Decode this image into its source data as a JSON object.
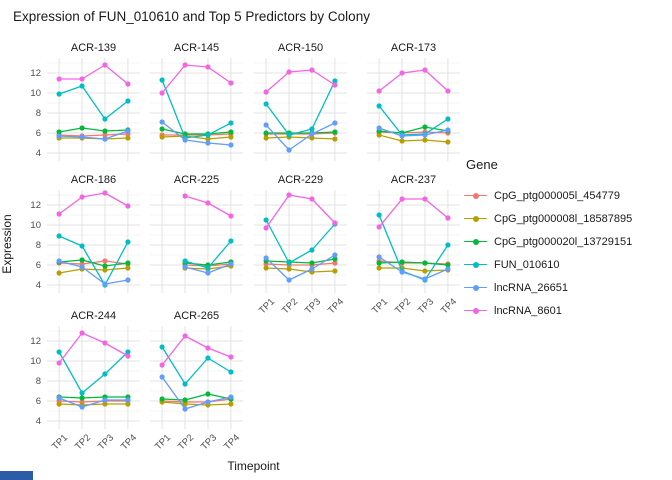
{
  "title": "Expression of FUN_010610 and Top 5 Predictors by Colony",
  "axes": {
    "x_label": "Timepoint",
    "y_label": "Expression",
    "x_tick_labels": [
      "TP1",
      "TP2",
      "TP3",
      "TP4"
    ],
    "y_tick_labels": [
      "12",
      "10",
      "8",
      "6",
      "4"
    ]
  },
  "legend": {
    "title": "Gene"
  },
  "chart_data": {
    "type": "line",
    "faceted": true,
    "title": "Expression of FUN_010610 and Top 5 Predictors by Colony",
    "xlabel": "Timepoint",
    "ylabel": "Expression",
    "x": [
      "TP1",
      "TP2",
      "TP3",
      "TP4"
    ],
    "ylim": [
      3.2,
      13.5
    ],
    "yticks": [
      4,
      6,
      8,
      10,
      12
    ],
    "yticks_minor": [
      5,
      7,
      9,
      11,
      13
    ],
    "grid": true,
    "legend_title": "Gene",
    "legend_position": "right",
    "genes": [
      {
        "name": "CpG_ptg000005l_454779",
        "color": "#F8766D"
      },
      {
        "name": "CpG_ptg000008l_18587895",
        "color": "#B79F00"
      },
      {
        "name": "CpG_ptg000020l_13729151",
        "color": "#00BA38"
      },
      {
        "name": "FUN_010610",
        "color": "#00BFC4"
      },
      {
        "name": "lncRNA_26651",
        "color": "#619CFF"
      },
      {
        "name": "lncRNA_8601",
        "color": "#F564E3"
      }
    ],
    "facets": [
      {
        "colony": "ACR-139",
        "values": [
          [
            5.8,
            5.7,
            5.8,
            5.9
          ],
          [
            5.5,
            5.5,
            5.4,
            5.5
          ],
          [
            6.1,
            6.5,
            6.2,
            6.3
          ],
          [
            9.9,
            10.7,
            7.4,
            9.2
          ],
          [
            5.7,
            5.6,
            5.4,
            6.2
          ],
          [
            11.4,
            11.4,
            12.8,
            10.9
          ]
        ]
      },
      {
        "colony": "ACR-145",
        "values": [
          [
            5.8,
            5.8,
            5.8,
            5.9
          ],
          [
            5.6,
            5.7,
            5.4,
            5.6
          ],
          [
            6.4,
            5.9,
            5.9,
            6.1
          ],
          [
            11.3,
            5.5,
            5.8,
            7.0
          ],
          [
            7.1,
            5.3,
            5.0,
            4.8
          ],
          [
            10.0,
            12.8,
            12.6,
            11.0
          ]
        ]
      },
      {
        "colony": "ACR-150",
        "values": [
          [
            5.9,
            5.9,
            5.9,
            6.0
          ],
          [
            5.5,
            5.6,
            5.5,
            5.4
          ],
          [
            6.0,
            6.0,
            6.0,
            6.1
          ],
          [
            8.9,
            5.8,
            6.4,
            11.2
          ],
          [
            6.8,
            4.3,
            5.9,
            7.0
          ],
          [
            10.1,
            12.1,
            12.3,
            10.8
          ]
        ]
      },
      {
        "colony": "ACR-173",
        "values": [
          [
            6.1,
            6.0,
            6.1,
            6.0
          ],
          [
            5.8,
            5.2,
            5.3,
            5.1
          ],
          [
            6.2,
            6.0,
            6.6,
            6.2
          ],
          [
            8.7,
            5.8,
            5.9,
            7.4
          ],
          [
            6.5,
            5.7,
            5.8,
            6.3
          ],
          [
            10.2,
            12.0,
            12.3,
            10.2
          ]
        ]
      },
      {
        "colony": "ACR-186",
        "values": [
          [
            6.2,
            6.1,
            6.4,
            6.1
          ],
          [
            5.2,
            5.6,
            5.5,
            5.7
          ],
          [
            6.3,
            6.5,
            5.9,
            6.2
          ],
          [
            8.9,
            7.9,
            4.0,
            8.3
          ],
          [
            6.4,
            5.8,
            4.1,
            4.5
          ],
          [
            11.1,
            12.8,
            13.2,
            11.9
          ]
        ]
      },
      {
        "colony": "ACR-225",
        "values": [
          [
            null,
            6.0,
            5.9,
            6.1
          ],
          [
            null,
            5.7,
            5.6,
            5.9
          ],
          [
            null,
            6.2,
            6.0,
            6.3
          ],
          [
            null,
            6.4,
            5.7,
            8.4
          ],
          [
            null,
            5.8,
            5.2,
            6.1
          ],
          [
            null,
            12.9,
            12.2,
            10.9
          ]
        ]
      },
      {
        "colony": "ACR-229",
        "values": [
          [
            6.1,
            6.0,
            6.0,
            6.2
          ],
          [
            5.7,
            5.6,
            5.3,
            5.4
          ],
          [
            6.4,
            6.3,
            6.2,
            6.6
          ],
          [
            10.5,
            6.2,
            7.5,
            10.1
          ],
          [
            6.7,
            4.5,
            5.6,
            7.0
          ],
          [
            9.7,
            13.0,
            12.6,
            10.2
          ]
        ]
      },
      {
        "colony": "ACR-237",
        "values": [
          [
            6.4,
            6.2,
            6.2,
            6.1
          ],
          [
            5.7,
            5.7,
            5.4,
            5.5
          ],
          [
            6.2,
            6.3,
            6.2,
            6.0
          ],
          [
            11.0,
            5.4,
            4.5,
            8.0
          ],
          [
            6.8,
            5.3,
            4.6,
            5.6
          ],
          [
            9.8,
            12.6,
            12.6,
            10.7
          ]
        ]
      },
      {
        "colony": "ACR-244",
        "values": [
          [
            6.0,
            5.9,
            6.0,
            6.0
          ],
          [
            5.7,
            5.6,
            5.7,
            5.7
          ],
          [
            6.4,
            6.3,
            6.4,
            6.4
          ],
          [
            10.9,
            6.8,
            8.7,
            10.9
          ],
          [
            6.3,
            5.4,
            6.1,
            6.1
          ],
          [
            9.8,
            12.8,
            11.8,
            10.5
          ]
        ]
      },
      {
        "colony": "ACR-265",
        "values": [
          [
            6.0,
            5.9,
            5.9,
            6.2
          ],
          [
            5.9,
            5.7,
            5.6,
            5.7
          ],
          [
            6.2,
            6.1,
            6.7,
            6.2
          ],
          [
            11.4,
            7.7,
            10.3,
            8.9
          ],
          [
            8.4,
            5.2,
            5.9,
            6.4
          ],
          [
            9.6,
            12.5,
            11.3,
            10.4
          ]
        ]
      }
    ]
  }
}
